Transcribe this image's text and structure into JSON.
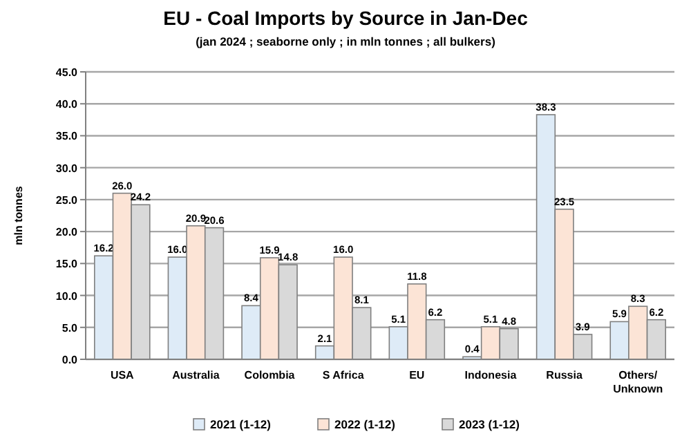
{
  "chart_data": {
    "type": "bar",
    "title": "EU - Coal Imports by Source in Jan-Dec",
    "subtitle": "(jan 2024 ; seaborne only ; in mln tonnes ; all bulkers)",
    "ylabel": "mln tonnes",
    "categories": [
      "USA",
      "Australia",
      "Colombia",
      "S Africa",
      "EU",
      "Indonesia",
      "Russia",
      "Others/\nUnknown"
    ],
    "series": [
      {
        "name": "2021 (1-12)",
        "color": "#deebf7",
        "values": [
          16.2,
          16.0,
          8.4,
          2.1,
          5.1,
          0.4,
          38.3,
          5.9
        ],
        "value_labels": [
          "16.2",
          "16.0",
          "8.4",
          "2.1",
          "5.1",
          "0.4",
          "38.3",
          "5.9"
        ]
      },
      {
        "name": "2022 (1-12)",
        "color": "#fce4d6",
        "values": [
          26.0,
          20.9,
          15.9,
          16.0,
          11.8,
          5.1,
          23.5,
          8.3
        ],
        "value_labels": [
          "26.0",
          "20.9",
          "15.9",
          "16.0",
          "11.8",
          "5.1",
          "23.5",
          "8.3"
        ]
      },
      {
        "name": "2023 (1-12)",
        "color": "#d9d9d9",
        "values": [
          24.2,
          20.6,
          14.8,
          8.1,
          6.2,
          4.8,
          3.9,
          6.2
        ],
        "value_labels": [
          "24.2",
          "20.6",
          "14.8",
          "8.1",
          "6.2",
          "4.8",
          "3.9",
          "6.2"
        ]
      }
    ],
    "ylim": [
      0,
      45
    ],
    "yticks": [
      {
        "value": 0,
        "label": "0.0"
      },
      {
        "value": 5,
        "label": "5.0"
      },
      {
        "value": 10,
        "label": "10.0"
      },
      {
        "value": 15,
        "label": "15.0"
      },
      {
        "value": 20,
        "label": "20.0"
      },
      {
        "value": 25,
        "label": "25.0"
      },
      {
        "value": 30,
        "label": "30.0"
      },
      {
        "value": 35,
        "label": "35.0"
      },
      {
        "value": 40,
        "label": "40.0"
      },
      {
        "value": 45,
        "label": "45.0"
      }
    ],
    "grid": "y",
    "legend": "bottom"
  }
}
